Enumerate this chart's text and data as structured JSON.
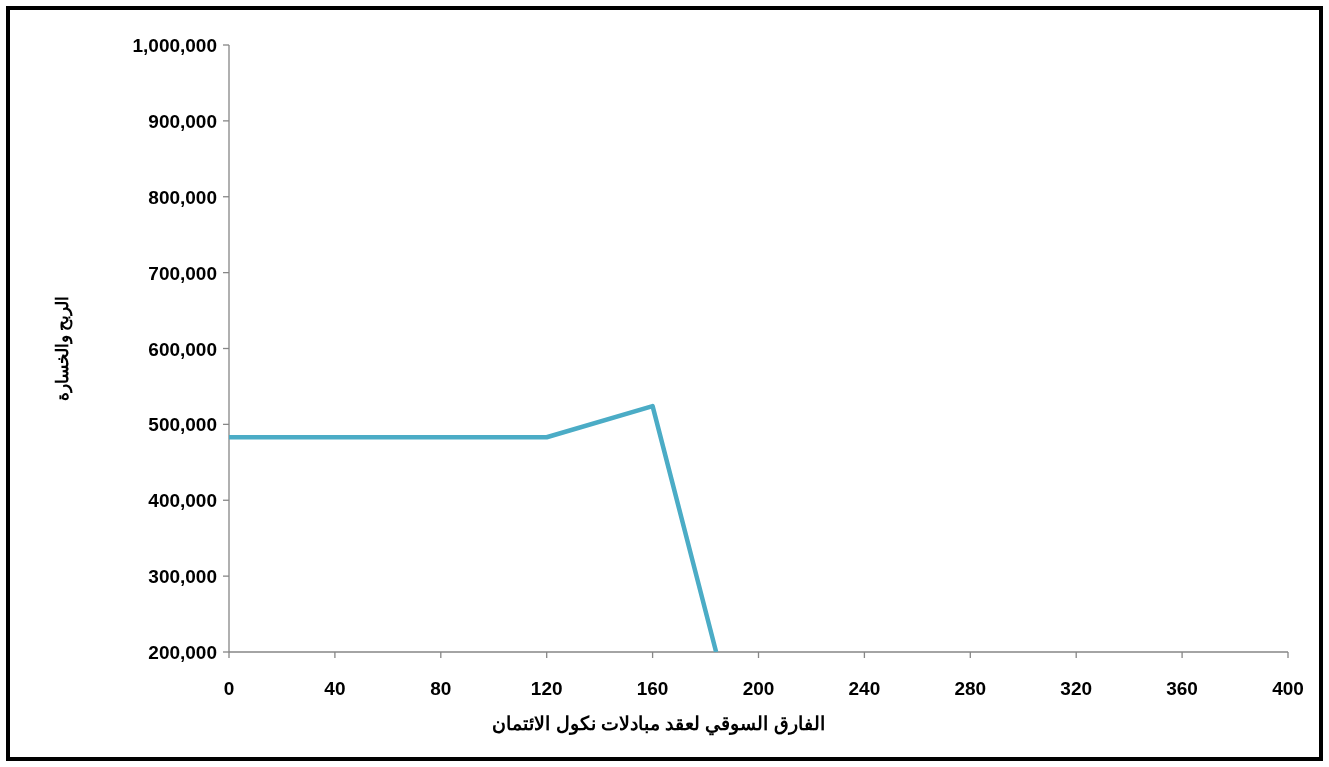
{
  "chart_data": {
    "type": "line",
    "xlabel": "الفارق السوقي لعقد مبادلات نكول الائتمان",
    "ylabel": "الربح والخسارة",
    "x": [
      0,
      120,
      160,
      184
    ],
    "series": [
      {
        "color": "#4bacc6",
        "values": [
          483000,
          483000,
          524000,
          200000
        ]
      }
    ],
    "xlim": [
      0,
      400
    ],
    "ylim": [
      200000,
      1000000
    ],
    "xticks": [
      0,
      40,
      80,
      120,
      160,
      200,
      240,
      280,
      320,
      360,
      400
    ],
    "yticks": [
      {
        "value": 200000,
        "label": "200,000"
      },
      {
        "value": 300000,
        "label": "300,000"
      },
      {
        "value": 400000,
        "label": "400,000"
      },
      {
        "value": 500000,
        "label": "500,000"
      },
      {
        "value": 600000,
        "label": "600,000"
      },
      {
        "value": 700000,
        "label": "700,000"
      },
      {
        "value": 800000,
        "label": "800,000"
      },
      {
        "value": 900000,
        "label": "900,000"
      },
      {
        "value": 1000000,
        "label": "1,000,000"
      }
    ],
    "grid": false
  }
}
